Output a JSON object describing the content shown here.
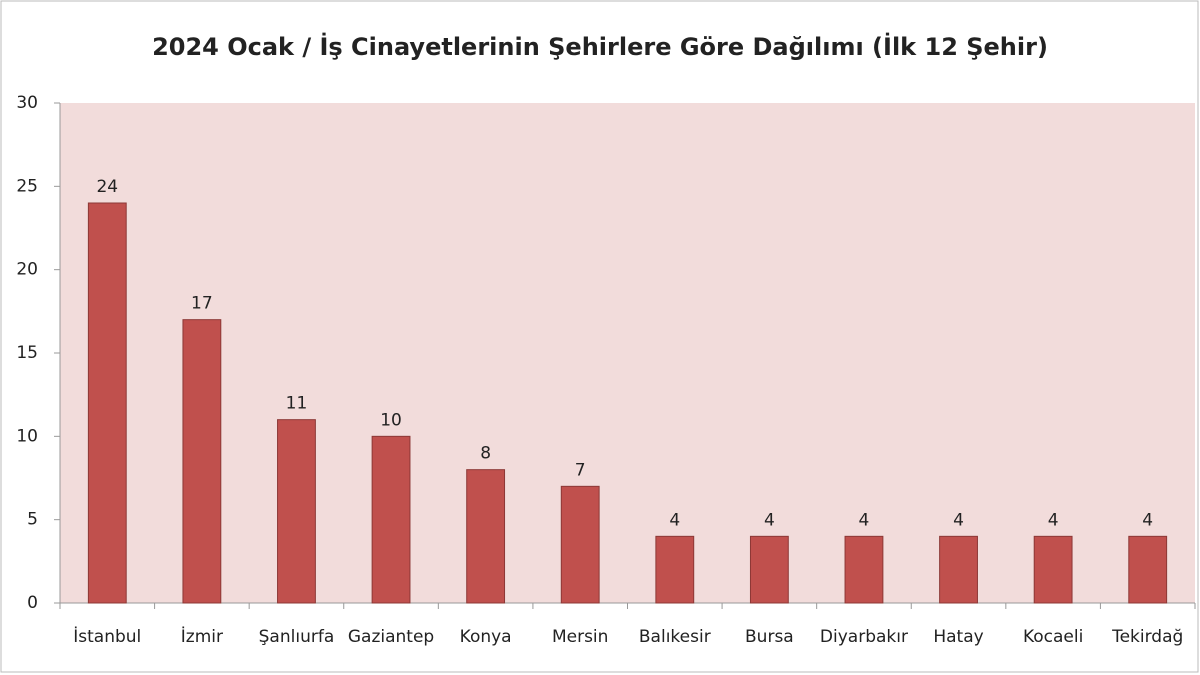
{
  "chart_data": {
    "type": "bar",
    "title": "2024 Ocak / İş Cinayetlerinin Şehirlere Göre Dağılımı (İlk 12 Şehir)",
    "categories": [
      "İstanbul",
      "İzmir",
      "Şanlıurfa",
      "Gaziantep",
      "Konya",
      "Mersin",
      "Balıkesir",
      "Bursa",
      "Diyarbakır",
      "Hatay",
      "Kocaeli",
      "Tekirdağ"
    ],
    "values": [
      24,
      17,
      11,
      10,
      8,
      7,
      4,
      4,
      4,
      4,
      4,
      4
    ],
    "color": "#c0504d",
    "ylim": [
      0,
      30
    ],
    "yticks": [
      0,
      5,
      10,
      15,
      20,
      25,
      30
    ],
    "grid": false
  }
}
